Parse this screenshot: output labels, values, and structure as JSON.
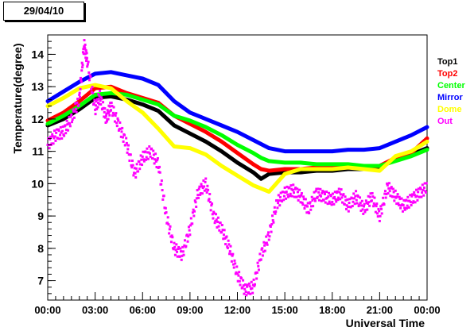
{
  "date_label": "29/04/10",
  "colors": {
    "Top1": "#000000",
    "Top2": "#ff0000",
    "Center": "#00ff00",
    "Mirror": "#0000ff",
    "Dome": "#ffff00",
    "Out": "#ff00ff"
  },
  "chart_data": {
    "type": "line",
    "title": "",
    "xlabel": "Universal Time",
    "ylabel": "Temperature(degree)",
    "xlim": [
      0,
      24
    ],
    "ylim": [
      6.4,
      14.6
    ],
    "x_ticks": [
      0,
      3,
      6,
      9,
      12,
      15,
      18,
      21,
      24
    ],
    "x_tick_labels": [
      "00:00",
      "03:00",
      "06:00",
      "09:00",
      "12:00",
      "15:00",
      "18:00",
      "21:00",
      "00:00"
    ],
    "y_ticks": [
      7,
      8,
      9,
      10,
      11,
      12,
      13,
      14
    ],
    "y_tick_labels": [
      "7",
      "8",
      "9",
      "10",
      "11",
      "12",
      "13",
      "14"
    ],
    "grid": false,
    "legend_position": "right",
    "series": [
      {
        "name": "Top1",
        "x": [
          0,
          1,
          2,
          3,
          4,
          5,
          6,
          7,
          8,
          9,
          10,
          11,
          12,
          13,
          13.5,
          14,
          15,
          16,
          17,
          18,
          19,
          20,
          21,
          22,
          23,
          24
        ],
        "y": [
          11.8,
          12.0,
          12.3,
          12.65,
          12.7,
          12.6,
          12.45,
          12.25,
          11.8,
          11.55,
          11.3,
          11.0,
          10.65,
          10.35,
          10.15,
          10.3,
          10.35,
          10.35,
          10.4,
          10.4,
          10.45,
          10.45,
          10.5,
          10.75,
          10.9,
          11.1
        ]
      },
      {
        "name": "Top2",
        "x": [
          0,
          1,
          2,
          3,
          4,
          5,
          6,
          7,
          8,
          9,
          10,
          11,
          12,
          13,
          13.5,
          14,
          15,
          16,
          17,
          18,
          19,
          20,
          21,
          22,
          23,
          24
        ],
        "y": [
          11.95,
          12.2,
          12.55,
          12.95,
          13.0,
          12.8,
          12.65,
          12.5,
          12.1,
          11.85,
          11.6,
          11.3,
          10.95,
          10.6,
          10.45,
          10.4,
          10.45,
          10.45,
          10.5,
          10.5,
          10.5,
          10.5,
          10.55,
          10.8,
          10.95,
          11.4
        ]
      },
      {
        "name": "Center",
        "x": [
          0,
          1,
          2,
          3,
          4,
          5,
          6,
          7,
          8,
          9,
          10,
          11,
          12,
          13,
          13.5,
          14,
          15,
          16,
          17,
          18,
          19,
          20,
          21,
          22,
          23,
          24
        ],
        "y": [
          11.85,
          12.1,
          12.4,
          12.75,
          12.8,
          12.75,
          12.6,
          12.45,
          12.1,
          11.95,
          11.75,
          11.5,
          11.2,
          10.95,
          10.8,
          10.7,
          10.65,
          10.65,
          10.6,
          10.6,
          10.6,
          10.55,
          10.55,
          10.7,
          10.85,
          11.05
        ]
      },
      {
        "name": "Mirror",
        "x": [
          0,
          1,
          2,
          3,
          4,
          5,
          6,
          7,
          8,
          9,
          10,
          11,
          12,
          13,
          14,
          15,
          16,
          17,
          18,
          19,
          20,
          21,
          22,
          23,
          24
        ],
        "y": [
          12.55,
          12.85,
          13.15,
          13.4,
          13.45,
          13.35,
          13.25,
          13.05,
          12.55,
          12.2,
          12.0,
          11.8,
          11.6,
          11.35,
          11.1,
          11.0,
          11.0,
          11.0,
          11.0,
          11.05,
          11.05,
          11.1,
          11.3,
          11.5,
          11.75
        ]
      },
      {
        "name": "Dome",
        "x": [
          0,
          1,
          2,
          3,
          4,
          5,
          6,
          7,
          8,
          9,
          10,
          11,
          12,
          13,
          14,
          15,
          16,
          17,
          18,
          19,
          20,
          21,
          22,
          23,
          24
        ],
        "y": [
          12.4,
          12.65,
          12.95,
          13.05,
          12.95,
          12.55,
          12.2,
          11.7,
          11.15,
          11.1,
          10.9,
          10.55,
          10.25,
          9.95,
          9.75,
          10.3,
          10.45,
          10.45,
          10.45,
          10.5,
          10.45,
          10.4,
          10.85,
          11.0,
          11.3
        ]
      },
      {
        "name": "Out",
        "x": [
          0,
          0.5,
          1,
          1.5,
          2,
          2.3,
          2.5,
          3,
          3.3,
          3.7,
          4,
          4.5,
          5,
          5.5,
          6,
          6.5,
          7,
          7.5,
          8,
          8.5,
          9,
          9.5,
          10,
          10.5,
          11,
          11.5,
          12,
          12.5,
          13,
          13.5,
          14,
          14.5,
          15,
          15.5,
          16,
          16.5,
          17,
          17.5,
          18,
          18.5,
          19,
          19.5,
          20,
          20.5,
          21,
          21.5,
          22,
          22.5,
          23,
          23.5,
          24
        ],
        "y": [
          11.2,
          11.5,
          11.6,
          12.0,
          12.6,
          14.3,
          13.8,
          12.3,
          12.7,
          12.0,
          12.4,
          11.8,
          11.2,
          10.3,
          10.8,
          11.0,
          10.6,
          9.0,
          8.0,
          7.8,
          8.6,
          9.7,
          10.0,
          9.0,
          8.6,
          8.0,
          7.2,
          6.7,
          6.8,
          7.8,
          8.4,
          9.4,
          9.7,
          9.8,
          9.6,
          9.2,
          9.7,
          9.6,
          9.5,
          9.7,
          9.3,
          9.6,
          9.2,
          9.6,
          9.0,
          9.9,
          9.6,
          9.3,
          9.5,
          9.7,
          9.9
        ]
      }
    ]
  }
}
